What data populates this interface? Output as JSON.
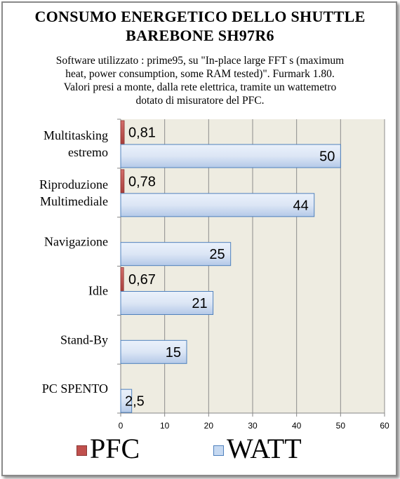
{
  "chart_data": {
    "type": "bar",
    "orientation": "horizontal",
    "title_line1": "CONSUMO ENERGETICO DELLO SHUTTLE",
    "title_line2": "BAREBONE SH97R6",
    "subtitle": [
      "Software utilizzato  : prime95,  su \"In-place large FFT s (maximum",
      "heat, power consumption, some RAM tested)\". Furmark 1.80.",
      "Valori presi a monte, dalla rete elettrica, tramite un wattemetro",
      "dotato di misuratore del PFC."
    ],
    "categories": [
      [
        "Multitasking",
        "estremo"
      ],
      [
        "Riproduzione",
        "Multimediale"
      ],
      [
        "Navigazione"
      ],
      [
        "Idle"
      ],
      [
        "Stand-By"
      ],
      [
        "PC SPENTO"
      ]
    ],
    "series": [
      {
        "name": "PFC",
        "values": [
          0.81,
          0.78,
          null,
          0.67,
          null,
          null
        ],
        "labels": [
          "0,81",
          "0,78",
          null,
          "0,67",
          null,
          null
        ],
        "color": "#c0504d"
      },
      {
        "name": "WATT",
        "values": [
          50,
          44,
          25,
          21,
          15,
          2.5
        ],
        "labels": [
          "50",
          "44",
          "25",
          "21",
          "15",
          "2,5"
        ],
        "color": "#c6d9f1"
      }
    ],
    "xlim": [
      0,
      60
    ],
    "xticks": [
      0,
      10,
      20,
      30,
      40,
      50,
      60
    ],
    "grid": true,
    "plot_background": "#eeece1",
    "legend_position": "bottom"
  }
}
